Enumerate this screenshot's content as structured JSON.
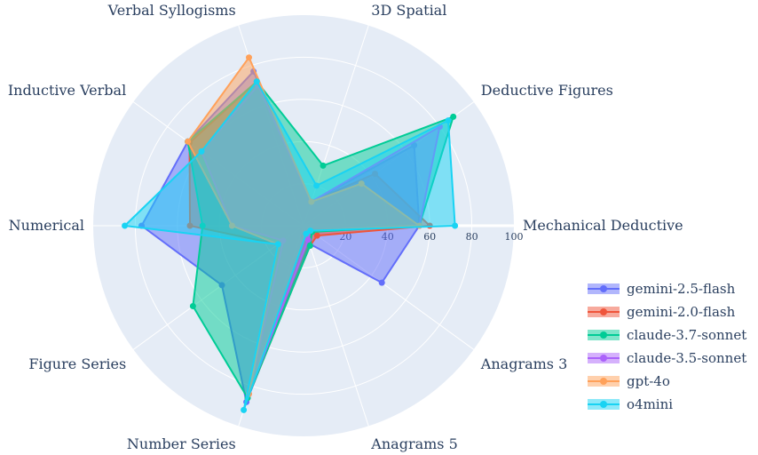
{
  "chart_data": {
    "type": "radar",
    "title": "",
    "axes": [
      "Mechanical Deductive",
      "Deductive Figures",
      "3D Spatial",
      "Verbal Syllogisms",
      "Inductive Verbal",
      "Numerical",
      "Figure Series",
      "Number Series",
      "Anagrams 5",
      "Anagrams 3"
    ],
    "radial_range": [
      0,
      100
    ],
    "radial_ticks": [
      0,
      20,
      40,
      60,
      80,
      100
    ],
    "legend_position": "bottom-right",
    "series": [
      {
        "name": "gemini-2.5-flash",
        "color": "#636efa",
        "values": [
          55,
          65,
          12,
          77,
          68,
          77,
          48,
          88,
          9,
          46
        ]
      },
      {
        "name": "gemini-2.0-flash",
        "color": "#ef553b",
        "values": [
          60,
          42,
          12,
          72,
          67,
          54,
          15,
          86,
          10,
          8
        ]
      },
      {
        "name": "claude-3.7-sonnet",
        "color": "#00cc96",
        "values": [
          55,
          88,
          30,
          72,
          68,
          48,
          65,
          86,
          10,
          5
        ]
      },
      {
        "name": "claude-3.5-sonnet",
        "color": "#ab63fa",
        "values": [
          55,
          80,
          12,
          70,
          60,
          34,
          12,
          84,
          7,
          4
        ]
      },
      {
        "name": "gpt-4o",
        "color": "#ffa15a",
        "values": [
          55,
          34,
          12,
          84,
          68,
          34,
          15,
          84,
          4,
          4
        ]
      },
      {
        "name": "o4mini",
        "color": "#19d3f3",
        "values": [
          72,
          85,
          20,
          72,
          60,
          85,
          15,
          92,
          4,
          4
        ]
      }
    ]
  }
}
